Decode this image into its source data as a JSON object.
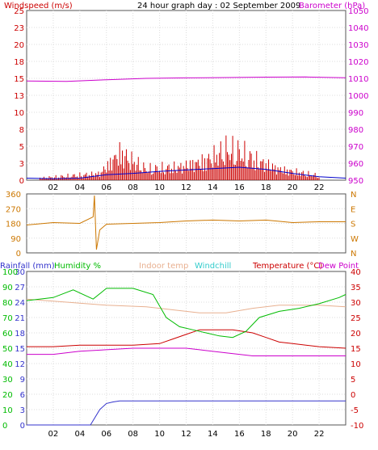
{
  "chart_data": [
    {
      "type": "line",
      "title": "24 hour graph day : 02 September 2009",
      "y_left_label": "Windspeed (m/s)",
      "y_right_label": "Barometer (hPa)",
      "x_ticks": [
        "02",
        "04",
        "06",
        "08",
        "10",
        "12",
        "14",
        "16",
        "18",
        "20",
        "22",
        ""
      ],
      "y_left_ticks": [
        "0",
        "3",
        "5",
        "8",
        "10",
        "13",
        "15",
        "18",
        "20",
        "23",
        "25"
      ],
      "y_left_range": [
        0,
        25
      ],
      "y_right_ticks": [
        "950",
        "960",
        "970",
        "980",
        "990",
        "1000",
        "1010",
        "1020",
        "1030",
        "1040",
        "1050"
      ],
      "y_right_range": [
        950,
        1050
      ],
      "barometer": {
        "x": [
          0,
          3,
          6,
          9,
          12,
          15,
          18,
          21,
          24
        ],
        "y": [
          1008.5,
          1008.2,
          1009.2,
          1010.0,
          1010.3,
          1010.5,
          1010.7,
          1010.8,
          1010.4
        ]
      },
      "gust_peaks": {
        "x": [
          1,
          5.5,
          7,
          9,
          11.5,
          13.5,
          15,
          16,
          17.3,
          19,
          22
        ],
        "y": [
          0.5,
          1.5,
          6.3,
          2.5,
          3.0,
          4.5,
          7.0,
          6.5,
          4.5,
          2.5,
          1.0
        ]
      },
      "avg_wind": {
        "x": [
          0,
          2,
          4,
          6,
          8,
          10,
          12,
          14,
          16,
          18,
          20,
          22,
          24
        ],
        "y": [
          0.3,
          0.2,
          0.3,
          0.8,
          1.0,
          1.3,
          1.5,
          1.7,
          1.9,
          1.6,
          1.0,
          0.5,
          0.3
        ]
      },
      "colors": {
        "windspeed": "#cc0000",
        "avg_wind": "#0000cc",
        "barometer": "#cc00cc",
        "axis_left": "#cc0000",
        "axis_right": "#cc00cc"
      }
    },
    {
      "type": "line",
      "y_left_ticks": [
        "0",
        "90",
        "180",
        "270",
        "360"
      ],
      "y_left_range": [
        0,
        360
      ],
      "y_right_ticks": [
        "N",
        "W",
        "S",
        "E",
        "N"
      ],
      "wind_direction": {
        "x": [
          0,
          2,
          4,
          5.0,
          5.1,
          5.25,
          5.5,
          6,
          8,
          10,
          12,
          14,
          16,
          18,
          20,
          22,
          24
        ],
        "y": [
          170,
          185,
          180,
          220,
          350,
          20,
          140,
          175,
          180,
          185,
          195,
          200,
          195,
          200,
          185,
          190,
          190
        ]
      },
      "colors": {
        "direction": "#cc7700",
        "axis": "#cc7700"
      }
    },
    {
      "type": "line",
      "legend": [
        "Rainfall (mm)",
        "Humidity %",
        "Indoor temp",
        "Windchill",
        "Temperature (°C)",
        "Dew Point"
      ],
      "x_ticks": [
        "02",
        "04",
        "06",
        "08",
        "10",
        "12",
        "14",
        "16",
        "18",
        "20",
        "22",
        ""
      ],
      "rain_ticks": [
        "0",
        "3",
        "6",
        "9",
        "12",
        "15",
        "18",
        "21",
        "24",
        "27",
        "30"
      ],
      "rain_range": [
        0,
        30
      ],
      "humidity_ticks": [
        "0",
        "10",
        "20",
        "30",
        "40",
        "50",
        "60",
        "70",
        "80",
        "90",
        "100"
      ],
      "humidity_range": [
        0,
        100
      ],
      "temp_ticks": [
        "-10",
        "-5",
        "0",
        "5",
        "10",
        "15",
        "20",
        "25",
        "30",
        "35",
        "40"
      ],
      "temp_range": [
        -10,
        40
      ],
      "rainfall": {
        "x": [
          0,
          4.8,
          5.5,
          6.0,
          6.5,
          7.0,
          24
        ],
        "y": [
          0,
          0,
          3.0,
          4.2,
          4.5,
          4.7,
          4.7
        ]
      },
      "humidity": {
        "x": [
          0,
          2,
          3.5,
          5,
          6,
          8,
          9.5,
          10.5,
          11.5,
          12.5,
          13.5,
          14.5,
          15.5,
          16.5,
          17.5,
          19,
          20.5,
          22,
          23.5,
          24
        ],
        "y": [
          81,
          83,
          88,
          82,
          89,
          89,
          85,
          70,
          64,
          62,
          60,
          58,
          57,
          61,
          70,
          74,
          76,
          79,
          83,
          85
        ]
      },
      "indoor_temp": {
        "x": [
          0,
          3,
          6,
          9,
          11,
          13,
          15,
          17,
          19,
          22,
          24
        ],
        "y": [
          31,
          30,
          29,
          28.5,
          27.5,
          26.5,
          26.5,
          28,
          29,
          29,
          28.5
        ]
      },
      "temperature": {
        "x": [
          0,
          2,
          4,
          6,
          8,
          10,
          11,
          12,
          13,
          14,
          15.5,
          17,
          18,
          19,
          20,
          22,
          24
        ],
        "y": [
          15.5,
          15.5,
          16,
          16,
          16,
          16.5,
          18,
          19.5,
          21,
          21,
          21,
          20,
          18.5,
          17,
          16.5,
          15.5,
          15
        ]
      },
      "dew_point": {
        "x": [
          0,
          2,
          4,
          6,
          8,
          10,
          11,
          12,
          13,
          15,
          17,
          19,
          20,
          22,
          24
        ],
        "y": [
          13,
          13,
          14,
          14.5,
          15,
          15,
          15,
          15,
          14.5,
          13.5,
          12.5,
          12.5,
          12.5,
          12.5,
          12.5
        ]
      },
      "colors": {
        "rainfall": "#3333cc",
        "humidity": "#00bb00",
        "indoor_temp": "#e8b090",
        "windchill": "#33cccc",
        "temperature": "#cc0000",
        "dew_point": "#cc00cc"
      }
    }
  ]
}
